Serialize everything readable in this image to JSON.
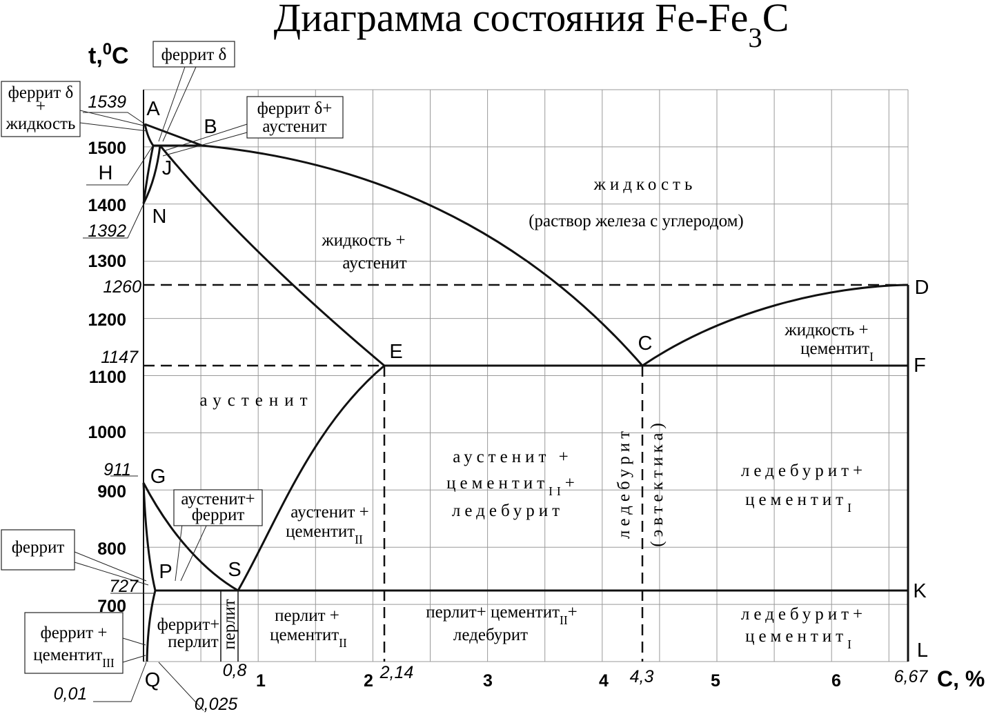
{
  "title": [
    "Диаграмма состояния Fe-Fe",
    "3",
    "C"
  ],
  "y_axis": {
    "label": [
      "t,",
      "0",
      "C"
    ],
    "ticks": [
      "1500",
      "1400",
      "1300",
      "1200",
      "1100",
      "1000",
      "900",
      "800",
      "700"
    ],
    "marked": [
      "1539",
      "1392",
      "1260",
      "1147",
      "911",
      "727"
    ]
  },
  "x_axis": {
    "label": "C, %",
    "ticks": [
      "1",
      "2",
      "3",
      "4",
      "5",
      "6"
    ],
    "marked": [
      "0,8",
      "2,14",
      "4,3",
      "6,67",
      "0,01",
      "0,025"
    ]
  },
  "points": [
    "A",
    "B",
    "H",
    "J",
    "N",
    "E",
    "C",
    "D",
    "F",
    "G",
    "P",
    "S",
    "K",
    "L",
    "Q"
  ],
  "regions": [
    [
      [
        "жидкость"
      ],
      [
        "(раствор железа с углеродом)"
      ]
    ],
    [
      [
        "жидкость +"
      ],
      [
        "аустенит"
      ]
    ],
    [
      [
        "аустенит"
      ]
    ],
    [
      [
        "аустенит +"
      ],
      [
        "цементит",
        "II",
        "+"
      ],
      [
        "ледебурит"
      ]
    ],
    [
      [
        "ледебурит"
      ]
    ],
    [
      [
        "(эвтектика)"
      ]
    ],
    [
      [
        "ледебурит+"
      ],
      [
        "цементит",
        "I"
      ]
    ],
    [
      [
        "жидкость +"
      ],
      [
        "цементит",
        "I"
      ]
    ],
    [
      [
        "аустенит +"
      ],
      [
        "цементит",
        "II"
      ]
    ],
    [
      [
        "перлит +"
      ],
      [
        "цементит",
        "II"
      ]
    ],
    [
      [
        "перлит+ цементит",
        "II",
        "+"
      ],
      [
        "ледебурит"
      ]
    ],
    [
      [
        "ледебурит+"
      ],
      [
        "цементит",
        "I"
      ]
    ],
    [
      [
        "перлит"
      ]
    ],
    [
      [
        "феррит+"
      ],
      [
        "перлит"
      ]
    ]
  ],
  "callouts": [
    [
      [
        "феррит δ"
      ]
    ],
    [
      [
        "феррит δ"
      ],
      [
        "+"
      ],
      [
        "жидкость"
      ]
    ],
    [
      [
        "феррит δ+"
      ],
      [
        "аустенит"
      ]
    ],
    [
      [
        "аустенит+"
      ],
      [
        "феррит"
      ]
    ],
    [
      [
        "феррит"
      ]
    ],
    [
      [
        "феррит +"
      ],
      [
        "цементит",
        "III"
      ]
    ]
  ]
}
